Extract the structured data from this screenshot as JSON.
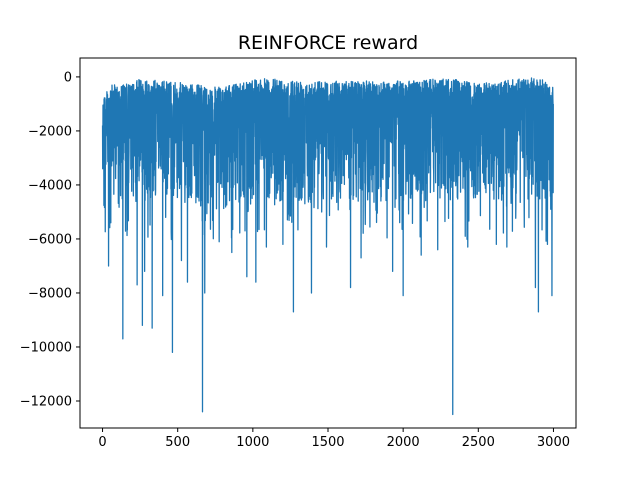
{
  "chart_data": {
    "type": "line",
    "title": "REINFORCE reward",
    "xlabel": "",
    "ylabel": "",
    "xlim": [
      -150,
      3150
    ],
    "ylim": [
      -13000,
      700
    ],
    "grid": false,
    "legend": "none",
    "xticks": [
      0,
      500,
      1000,
      1500,
      2000,
      2500,
      3000
    ],
    "xtick_labels": [
      "0",
      "500",
      "1000",
      "1500",
      "2000",
      "2500",
      "3000"
    ],
    "yticks": [
      0,
      -2000,
      -4000,
      -6000,
      -8000,
      -10000,
      -12000
    ],
    "ytick_labels": [
      "0",
      "−2000",
      "−4000",
      "−6000",
      "−8000",
      "−10000",
      "−12000"
    ],
    "series": [
      {
        "color": "#1f77b4",
        "n_points": 3000,
        "typical_range": [
          -4500,
          -200
        ],
        "envelope_top": [
          {
            "x": 0,
            "y": -400
          },
          {
            "x": 20,
            "y": -600
          },
          {
            "x": 60,
            "y": -300
          },
          {
            "x": 200,
            "y": -250
          },
          {
            "x": 250,
            "y": -50
          },
          {
            "x": 500,
            "y": -200
          },
          {
            "x": 800,
            "y": -400
          },
          {
            "x": 1000,
            "y": -50
          },
          {
            "x": 1500,
            "y": -150
          },
          {
            "x": 2000,
            "y": -150
          },
          {
            "x": 2300,
            "y": -50
          },
          {
            "x": 2500,
            "y": -250
          },
          {
            "x": 2900,
            "y": 0
          },
          {
            "x": 3000,
            "y": -400
          }
        ],
        "spikes": [
          {
            "x": 40,
            "y": -7000
          },
          {
            "x": 55,
            "y": -5400
          },
          {
            "x": 135,
            "y": -9700
          },
          {
            "x": 230,
            "y": -7700
          },
          {
            "x": 265,
            "y": -9200
          },
          {
            "x": 280,
            "y": -7200
          },
          {
            "x": 330,
            "y": -9300
          },
          {
            "x": 400,
            "y": -8100
          },
          {
            "x": 465,
            "y": -10200
          },
          {
            "x": 525,
            "y": -6800
          },
          {
            "x": 565,
            "y": -7600
          },
          {
            "x": 665,
            "y": -12400
          },
          {
            "x": 680,
            "y": -8000
          },
          {
            "x": 860,
            "y": -6500
          },
          {
            "x": 960,
            "y": -7400
          },
          {
            "x": 1020,
            "y": -7600
          },
          {
            "x": 1090,
            "y": -6300
          },
          {
            "x": 1200,
            "y": -6200
          },
          {
            "x": 1270,
            "y": -8700
          },
          {
            "x": 1390,
            "y": -8000
          },
          {
            "x": 1490,
            "y": -6300
          },
          {
            "x": 1650,
            "y": -7800
          },
          {
            "x": 1720,
            "y": -6700
          },
          {
            "x": 1930,
            "y": -7200
          },
          {
            "x": 2000,
            "y": -8100
          },
          {
            "x": 2120,
            "y": -6600
          },
          {
            "x": 2230,
            "y": -6400
          },
          {
            "x": 2330,
            "y": -12500
          },
          {
            "x": 2430,
            "y": -6300
          },
          {
            "x": 2620,
            "y": -6200
          },
          {
            "x": 2690,
            "y": -6300
          },
          {
            "x": 2880,
            "y": -7800
          },
          {
            "x": 2900,
            "y": -8700
          },
          {
            "x": 2960,
            "y": -6200
          },
          {
            "x": 2990,
            "y": -8100
          }
        ]
      }
    ]
  }
}
